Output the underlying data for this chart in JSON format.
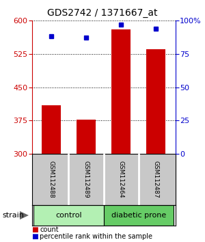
{
  "title": "GDS2742 / 1371667_at",
  "samples": [
    "GSM112488",
    "GSM112489",
    "GSM112464",
    "GSM112487"
  ],
  "counts": [
    410,
    377,
    580,
    535
  ],
  "percentiles": [
    88,
    87,
    97,
    94
  ],
  "groups": [
    {
      "label": "control",
      "samples": [
        0,
        1
      ],
      "color": "#b3f0b3"
    },
    {
      "label": "diabetic prone",
      "samples": [
        2,
        3
      ],
      "color": "#66cc66"
    }
  ],
  "ylim_left": [
    300,
    600
  ],
  "ylim_right": [
    0,
    100
  ],
  "yticks_left": [
    300,
    375,
    450,
    525,
    600
  ],
  "yticks_right": [
    0,
    25,
    50,
    75,
    100
  ],
  "bar_color": "#cc0000",
  "marker_color": "#0000cc",
  "bar_width": 0.55,
  "left_axis_color": "#cc0000",
  "right_axis_color": "#0000cc",
  "legend_items": [
    {
      "label": "count",
      "color": "#cc0000"
    },
    {
      "label": "percentile rank within the sample",
      "color": "#0000cc"
    }
  ],
  "strain_label": "strain",
  "label_bg_color": "#c8c8c8",
  "label_sep_color": "#ffffff",
  "group_border_color": "#000000"
}
